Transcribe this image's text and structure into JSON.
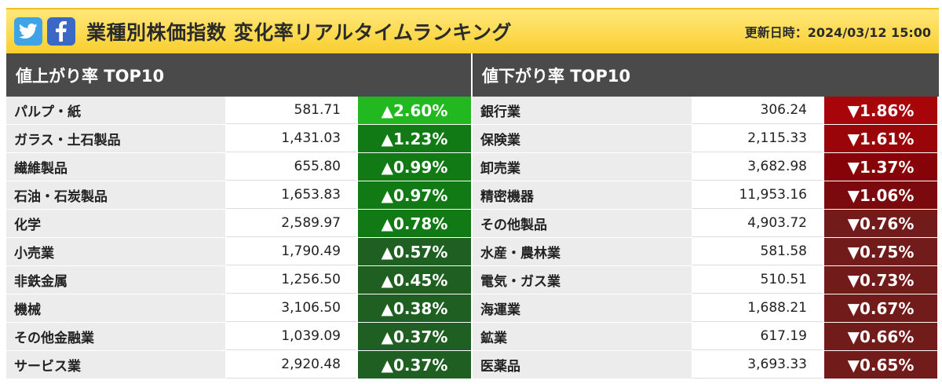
{
  "header": {
    "title": "業種別株価指数 変化率リアルタイムランキング",
    "updated": "更新日時：2024/03/12 15:00"
  },
  "colors": {
    "header_bg": "#f9cf2f",
    "panel_head_bg": "#4a4a4a",
    "up_colors": [
      "#22b81f",
      "#127a14",
      "#127a14",
      "#127a14",
      "#127a14",
      "#1f5f21",
      "#1f5f21",
      "#1f5f21",
      "#1f5f21",
      "#1f5f21"
    ],
    "down_colors": [
      "#a8050a",
      "#9a0509",
      "#860407",
      "#7a0a0d",
      "#721b1b",
      "#721b1b",
      "#721b1b",
      "#721b1b",
      "#721b1b",
      "#721b1b"
    ]
  },
  "gainers": {
    "heading": "値上がり率 TOP10",
    "rows": [
      {
        "name": "パルプ・紙",
        "value": "581.71",
        "change": "▲2.60%"
      },
      {
        "name": "ガラス・土石製品",
        "value": "1,431.03",
        "change": "▲1.23%"
      },
      {
        "name": "繊維製品",
        "value": "655.80",
        "change": "▲0.99%"
      },
      {
        "name": "石油・石炭製品",
        "value": "1,653.83",
        "change": "▲0.97%"
      },
      {
        "name": "化学",
        "value": "2,589.97",
        "change": "▲0.78%"
      },
      {
        "name": "小売業",
        "value": "1,790.49",
        "change": "▲0.57%"
      },
      {
        "name": "非鉄金属",
        "value": "1,256.50",
        "change": "▲0.45%"
      },
      {
        "name": "機械",
        "value": "3,106.50",
        "change": "▲0.38%"
      },
      {
        "name": "その他金融業",
        "value": "1,039.09",
        "change": "▲0.37%"
      },
      {
        "name": "サービス業",
        "value": "2,920.48",
        "change": "▲0.37%"
      }
    ]
  },
  "losers": {
    "heading": "値下がり率 TOP10",
    "rows": [
      {
        "name": "銀行業",
        "value": "306.24",
        "change": "▼1.86%"
      },
      {
        "name": "保険業",
        "value": "2,115.33",
        "change": "▼1.61%"
      },
      {
        "name": "卸売業",
        "value": "3,682.98",
        "change": "▼1.37%"
      },
      {
        "name": "精密機器",
        "value": "11,953.16",
        "change": "▼1.06%"
      },
      {
        "name": "その他製品",
        "value": "4,903.72",
        "change": "▼0.76%"
      },
      {
        "name": "水産・農林業",
        "value": "581.58",
        "change": "▼0.75%"
      },
      {
        "name": "電気・ガス業",
        "value": "510.51",
        "change": "▼0.73%"
      },
      {
        "name": "海運業",
        "value": "1,688.21",
        "change": "▼0.67%"
      },
      {
        "name": "鉱業",
        "value": "617.19",
        "change": "▼0.66%"
      },
      {
        "name": "医薬品",
        "value": "3,693.33",
        "change": "▼0.65%"
      }
    ]
  }
}
